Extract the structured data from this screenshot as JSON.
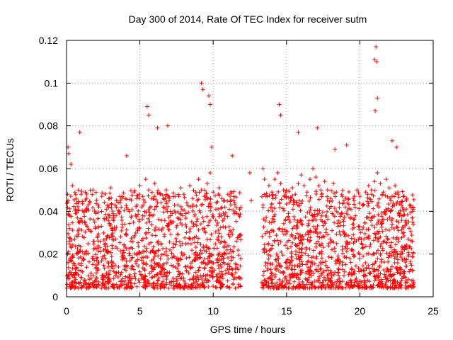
{
  "chart_data": {
    "type": "scatter",
    "title": "Day 300 of 2014, Rate Of TEC Index for receiver sutm",
    "xlabel": "GPS time / hours",
    "ylabel": "ROTI / TECUs",
    "xlim": [
      0,
      25
    ],
    "ylim": [
      0,
      0.12
    ],
    "xticks": [
      0,
      5,
      10,
      15,
      20,
      25
    ],
    "xtick_labels": [
      "0",
      "5",
      "10",
      "15",
      "20",
      "25"
    ],
    "yticks": [
      0,
      0.02,
      0.04,
      0.06,
      0.08,
      0.1,
      0.12
    ],
    "ytick_labels": [
      "0",
      "0.02",
      "0.04",
      "0.06",
      "0.08",
      "0.1",
      "0.12"
    ],
    "grid": true,
    "marker": "+",
    "color": "#ff0000",
    "series": [
      {
        "name": "ROTI",
        "x": [
          0.1,
          0.2,
          0.4,
          0.6,
          0.8,
          1.0,
          1.2,
          1.4,
          1.6,
          1.8,
          2.0,
          2.2,
          2.4,
          2.6,
          2.8,
          3.0,
          3.2,
          3.4,
          3.6,
          3.8,
          4.0,
          4.2,
          4.4,
          4.6,
          4.8,
          5.0,
          5.2,
          5.4,
          5.6,
          5.8,
          6.0,
          6.2,
          6.4,
          6.6,
          6.8,
          7.0,
          7.2,
          7.4,
          7.6,
          7.8,
          8.0,
          8.2,
          8.4,
          8.6,
          8.8,
          9.0,
          9.2,
          9.4,
          9.6,
          9.8,
          10.0,
          10.2,
          10.4,
          10.6,
          10.8,
          11.0,
          11.2,
          11.4,
          11.6,
          11.8,
          13.4,
          13.6,
          13.8,
          14.0,
          14.2,
          14.4,
          14.6,
          14.8,
          15.0,
          15.2,
          15.4,
          15.6,
          15.8,
          16.0,
          16.2,
          16.4,
          16.6,
          16.8,
          17.0,
          17.2,
          17.4,
          17.6,
          17.8,
          18.0,
          18.2,
          18.4,
          18.6,
          18.8,
          19.0,
          19.2,
          19.4,
          19.6,
          19.8,
          20.0,
          20.2,
          20.4,
          20.6,
          20.8,
          21.0,
          21.2,
          21.4,
          21.6,
          21.8,
          22.0,
          22.2,
          22.4,
          22.6,
          22.8,
          23.0,
          23.2,
          23.4,
          23.6,
          0.1,
          0.9,
          5.5,
          5.6,
          9.2,
          9.3,
          9.7,
          9.8,
          14.5,
          14.6,
          17.1,
          21.0,
          21.1,
          21.2,
          21.05,
          21.15,
          12.5,
          12.6,
          13.4,
          13.5,
          0.15,
          0.3,
          4.1,
          6.2,
          6.9,
          9.9,
          11.3,
          15.8,
          18.3,
          19.1,
          22.2,
          22.5
        ],
        "y": [
          0.045,
          0.038,
          0.052,
          0.041,
          0.035,
          0.048,
          0.04,
          0.033,
          0.044,
          0.05,
          0.039,
          0.042,
          0.047,
          0.036,
          0.043,
          0.051,
          0.038,
          0.045,
          0.04,
          0.034,
          0.046,
          0.041,
          0.037,
          0.049,
          0.043,
          0.052,
          0.047,
          0.055,
          0.05,
          0.046,
          0.053,
          0.044,
          0.048,
          0.042,
          0.05,
          0.045,
          0.039,
          0.047,
          0.043,
          0.051,
          0.048,
          0.044,
          0.052,
          0.046,
          0.049,
          0.055,
          0.05,
          0.047,
          0.053,
          0.058,
          0.049,
          0.044,
          0.051,
          0.046,
          0.042,
          0.048,
          0.043,
          0.045,
          0.039,
          0.041,
          0.043,
          0.047,
          0.052,
          0.049,
          0.055,
          0.058,
          0.053,
          0.05,
          0.047,
          0.044,
          0.051,
          0.048,
          0.053,
          0.057,
          0.052,
          0.049,
          0.055,
          0.06,
          0.056,
          0.052,
          0.048,
          0.054,
          0.05,
          0.046,
          0.053,
          0.049,
          0.044,
          0.047,
          0.042,
          0.046,
          0.041,
          0.045,
          0.05,
          0.047,
          0.043,
          0.049,
          0.052,
          0.048,
          0.054,
          0.058,
          0.053,
          0.049,
          0.055,
          0.051,
          0.047,
          0.052,
          0.048,
          0.044,
          0.041,
          0.046,
          0.043,
          0.04,
          0.07,
          0.077,
          0.089,
          0.085,
          0.1,
          0.097,
          0.094,
          0.09,
          0.09,
          0.085,
          0.079,
          0.111,
          0.117,
          0.093,
          0.087,
          0.11,
          0.058,
          0.045,
          0.06,
          0.055,
          0.067,
          0.062,
          0.066,
          0.079,
          0.08,
          0.07,
          0.066,
          0.077,
          0.069,
          0.071,
          0.073,
          0.07
        ],
        "note": "approximate sample of visible scatter; points densely fill 0.003–0.05 band across 0–11.9 h and 13.3–23.7 h"
      }
    ]
  }
}
